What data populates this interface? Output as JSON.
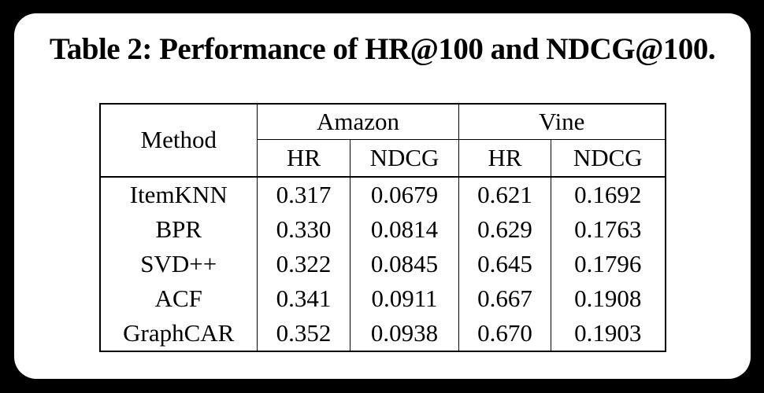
{
  "title": "Table 2: Performance of HR@100 and NDCG@100.",
  "colors": {
    "background": "#000000",
    "card": "#ffffff",
    "text": "#000000",
    "border": "#000000"
  },
  "table": {
    "corner_header": "Method",
    "groups": [
      {
        "label": "Amazon",
        "subheaders": [
          "HR",
          "NDCG"
        ]
      },
      {
        "label": "Vine",
        "subheaders": [
          "HR",
          "NDCG"
        ]
      }
    ],
    "rows": [
      {
        "method": "ItemKNN",
        "amazon_hr": "0.317",
        "amazon_ndcg": "0.0679",
        "vine_hr": "0.621",
        "vine_ndcg": "0.1692"
      },
      {
        "method": "BPR",
        "amazon_hr": "0.330",
        "amazon_ndcg": "0.0814",
        "vine_hr": "0.629",
        "vine_ndcg": "0.1763"
      },
      {
        "method": "SVD++",
        "amazon_hr": "0.322",
        "amazon_ndcg": "0.0845",
        "vine_hr": "0.645",
        "vine_ndcg": "0.1796"
      },
      {
        "method": "ACF",
        "amazon_hr": "0.341",
        "amazon_ndcg": "0.0911",
        "vine_hr": "0.667",
        "vine_ndcg": "0.1908"
      },
      {
        "method": "GraphCAR",
        "amazon_hr": "0.352",
        "amazon_ndcg": "0.0938",
        "vine_hr": "0.670",
        "vine_ndcg": "0.1903"
      }
    ]
  }
}
